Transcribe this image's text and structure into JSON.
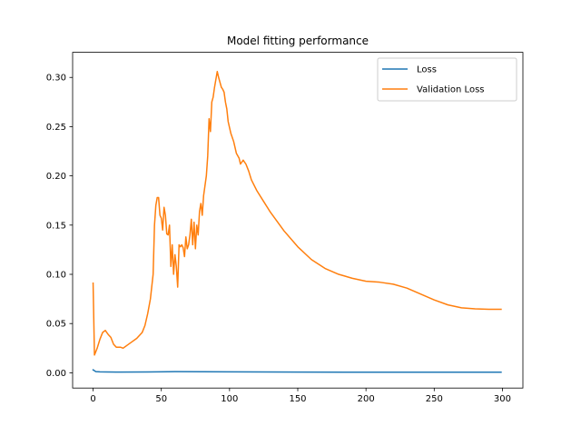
{
  "chart_data": {
    "type": "line",
    "title": "Model fitting performance",
    "xlabel": "",
    "ylabel": "",
    "xlim": [
      -15,
      315
    ],
    "ylim": [
      -0.0155,
      0.3255
    ],
    "xticks": [
      0,
      50,
      100,
      150,
      200,
      250,
      300
    ],
    "xtick_labels": [
      "0",
      "50",
      "100",
      "150",
      "200",
      "250",
      "300"
    ],
    "yticks": [
      0.0,
      0.05,
      0.1,
      0.15,
      0.2,
      0.25,
      0.3
    ],
    "ytick_labels": [
      "0.00",
      "0.05",
      "0.10",
      "0.15",
      "0.20",
      "0.25",
      "0.30"
    ],
    "grid": false,
    "legend_position": "upper right",
    "series": [
      {
        "name": "Loss",
        "color": "#1f77b4",
        "points": [
          [
            0,
            0.003
          ],
          [
            2,
            0.0012
          ],
          [
            5,
            0.0009
          ],
          [
            10,
            0.0008
          ],
          [
            20,
            0.0007
          ],
          [
            40,
            0.0008
          ],
          [
            55,
            0.0011
          ],
          [
            60,
            0.0012
          ],
          [
            80,
            0.0011
          ],
          [
            100,
            0.0009
          ],
          [
            150,
            0.0007
          ],
          [
            200,
            0.0006
          ],
          [
            250,
            0.0006
          ],
          [
            299,
            0.0006
          ]
        ]
      },
      {
        "name": "Validation Loss",
        "color": "#ff7f0e",
        "points": [
          [
            0,
            0.091
          ],
          [
            1,
            0.018
          ],
          [
            3,
            0.025
          ],
          [
            5,
            0.034
          ],
          [
            7,
            0.041
          ],
          [
            9,
            0.043
          ],
          [
            11,
            0.039
          ],
          [
            13,
            0.036
          ],
          [
            15,
            0.029
          ],
          [
            17,
            0.026
          ],
          [
            20,
            0.026
          ],
          [
            22,
            0.025
          ],
          [
            25,
            0.028
          ],
          [
            28,
            0.031
          ],
          [
            32,
            0.035
          ],
          [
            36,
            0.041
          ],
          [
            38,
            0.048
          ],
          [
            40,
            0.06
          ],
          [
            42,
            0.075
          ],
          [
            44,
            0.1
          ],
          [
            45,
            0.15
          ],
          [
            46,
            0.17
          ],
          [
            47,
            0.178
          ],
          [
            48,
            0.178
          ],
          [
            49,
            0.16
          ],
          [
            50,
            0.157
          ],
          [
            51,
            0.145
          ],
          [
            52,
            0.168
          ],
          [
            53,
            0.16
          ],
          [
            54,
            0.141
          ],
          [
            55,
            0.14
          ],
          [
            56,
            0.15
          ],
          [
            57,
            0.108
          ],
          [
            58,
            0.13
          ],
          [
            59,
            0.1
          ],
          [
            60,
            0.12
          ],
          [
            61,
            0.108
          ],
          [
            62,
            0.087
          ],
          [
            63,
            0.13
          ],
          [
            64,
            0.128
          ],
          [
            65,
            0.13
          ],
          [
            66,
            0.127
          ],
          [
            67,
            0.118
          ],
          [
            68,
            0.138
          ],
          [
            69,
            0.126
          ],
          [
            70,
            0.13
          ],
          [
            71,
            0.14
          ],
          [
            72,
            0.156
          ],
          [
            73,
            0.13
          ],
          [
            74,
            0.153
          ],
          [
            75,
            0.126
          ],
          [
            76,
            0.15
          ],
          [
            77,
            0.14
          ],
          [
            78,
            0.164
          ],
          [
            79,
            0.172
          ],
          [
            80,
            0.16
          ],
          [
            81,
            0.18
          ],
          [
            82,
            0.19
          ],
          [
            83,
            0.2
          ],
          [
            84,
            0.22
          ],
          [
            85,
            0.258
          ],
          [
            86,
            0.245
          ],
          [
            87,
            0.275
          ],
          [
            88,
            0.28
          ],
          [
            89,
            0.29
          ],
          [
            90,
            0.298
          ],
          [
            91,
            0.306
          ],
          [
            92,
            0.3
          ],
          [
            93,
            0.295
          ],
          [
            94,
            0.29
          ],
          [
            95,
            0.288
          ],
          [
            96,
            0.285
          ],
          [
            97,
            0.275
          ],
          [
            98,
            0.268
          ],
          [
            99,
            0.255
          ],
          [
            101,
            0.243
          ],
          [
            103,
            0.235
          ],
          [
            105,
            0.223
          ],
          [
            107,
            0.218
          ],
          [
            108,
            0.212
          ],
          [
            110,
            0.216
          ],
          [
            112,
            0.212
          ],
          [
            114,
            0.205
          ],
          [
            116,
            0.196
          ],
          [
            120,
            0.185
          ],
          [
            125,
            0.174
          ],
          [
            130,
            0.163
          ],
          [
            140,
            0.144
          ],
          [
            150,
            0.128
          ],
          [
            160,
            0.115
          ],
          [
            170,
            0.106
          ],
          [
            180,
            0.1
          ],
          [
            190,
            0.096
          ],
          [
            200,
            0.093
          ],
          [
            210,
            0.092
          ],
          [
            220,
            0.09
          ],
          [
            230,
            0.086
          ],
          [
            240,
            0.08
          ],
          [
            250,
            0.074
          ],
          [
            260,
            0.069
          ],
          [
            270,
            0.066
          ],
          [
            280,
            0.065
          ],
          [
            290,
            0.0645
          ],
          [
            299,
            0.0645
          ]
        ]
      }
    ]
  }
}
